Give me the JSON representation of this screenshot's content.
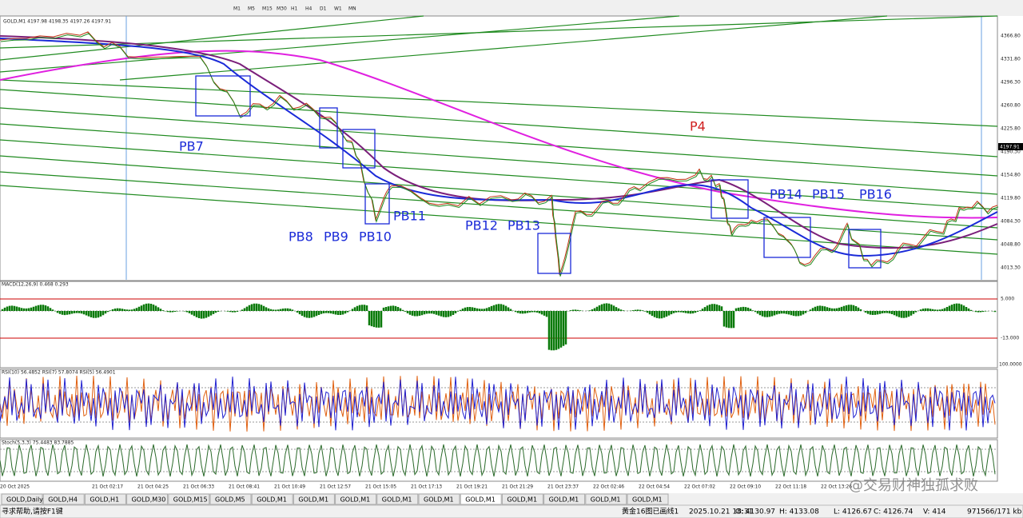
{
  "toolbar": {
    "timeframes": [
      "M1",
      "M5",
      "M15",
      "M30",
      "H1",
      "H4",
      "D1",
      "W1",
      "MN"
    ]
  },
  "chart": {
    "header": "GOLD,M1  4197.98 4198.35 4197.26 4197.91",
    "price_labels": [
      "4366.80",
      "4331.80",
      "4296.30",
      "4260.80",
      "4225.80",
      "4190.30",
      "4154.80",
      "4119.80",
      "4084.30",
      "4048.80",
      "4013.30"
    ],
    "current_price": "4197.91",
    "annotations": [
      "PB7",
      "PB8",
      "PB9",
      "PB10",
      "PB11",
      "PB12",
      "PB13",
      "P4",
      "PB14",
      "PB15",
      "PB16"
    ]
  },
  "macd": {
    "label": "MACD(12,26,9) 0.468 0.293",
    "levels": [
      "5.000",
      "-13.000"
    ]
  },
  "rsi": {
    "label": "RSI(10) 56.4852  RSI(7) 57.8074  RSI(5) 56.4901",
    "top": "100.0000"
  },
  "stoch": {
    "label": "Stoch(5,3,3) 75.4483 83.7885"
  },
  "time_labels": [
    "20 Oct 2025",
    "21 Oct 02:17",
    "21 Oct 04:25",
    "21 Oct 06:33",
    "21 Oct 08:41",
    "21 Oct 10:49",
    "21 Oct 12:57",
    "21 Oct 15:05",
    "21 Oct 17:13",
    "21 Oct 19:21",
    "21 Oct 21:29",
    "21 Oct 23:37",
    "22 Oct 02:46",
    "22 Oct 04:54",
    "22 Oct 07:02",
    "22 Oct 09:10",
    "22 Oct 11:18",
    "22 Oct 13:26"
  ],
  "tabs": [
    "GOLD,Daily",
    "GOLD,H4",
    "GOLD,H1",
    "GOLD,M30",
    "GOLD,M15",
    "GOLD,M5",
    "GOLD,M1",
    "GOLD,M1",
    "GOLD,M1",
    "GOLD,M1",
    "GOLD,M1",
    "GOLD,M1",
    "GOLD,M1",
    "GOLD,M1",
    "GOLD,M1",
    "GOLD,M1"
  ],
  "status": [
    "寻求帮助,请按F1键",
    "黄金16图已画线1",
    "2025.10.21 18:31",
    "O: 4130.97",
    "H: 4133.08",
    "L: 4126.67",
    "C: 4126.74",
    "V: 414",
    "971566/171 kb"
  ],
  "watermark": "@交易财神独孤求败"
}
